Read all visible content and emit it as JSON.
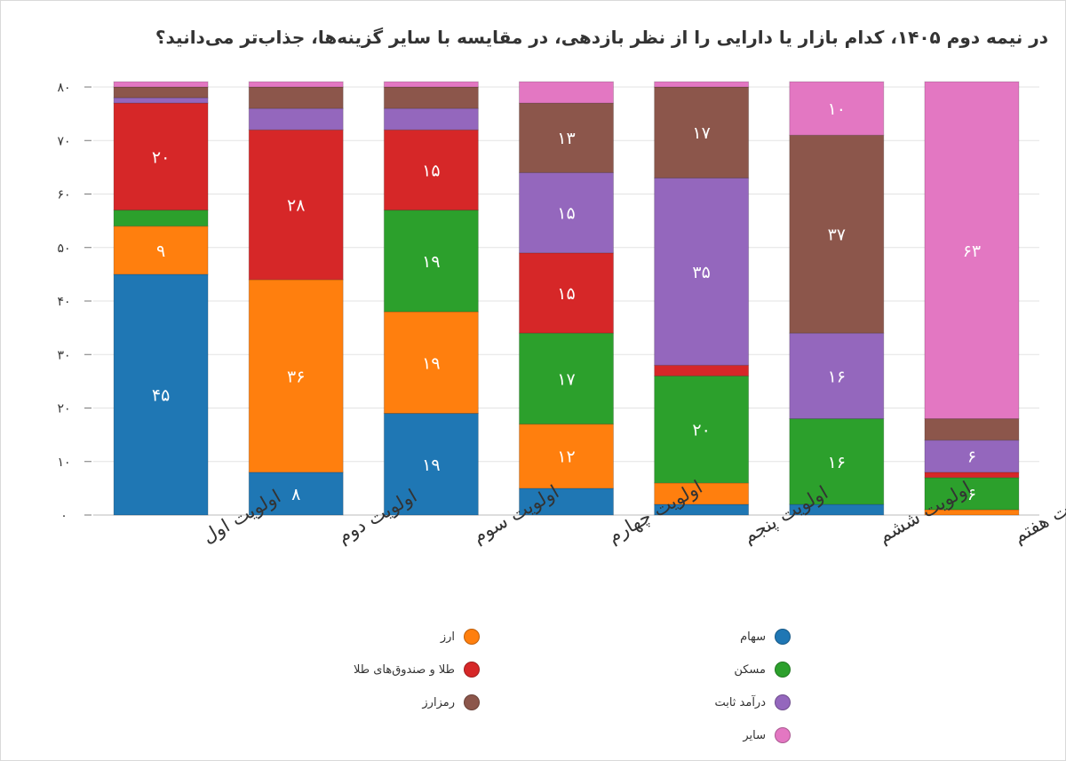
{
  "title": "در نیمه دوم ۱۴۰۵، کدام بازار یا دارایی را از نظر بازدهی، در مقایسه با سایر گزینه‌ها، جذاب‌تر می‌دانید؟",
  "chart_data": {
    "type": "bar",
    "stacked": true,
    "title": "در نیمه دوم ۱۴۰۵، کدام بازار یا دارایی را از نظر بازدهی، در مقایسه با سایر گزینه‌ها، جذاب‌تر می‌دانید؟",
    "categories": [
      "اولویت اول",
      "اولویت دوم",
      "اولویت سوم",
      "اولویت چهارم",
      "اولویت پنجم",
      "اولویت ششم",
      "اولویت هفتم"
    ],
    "ylim": [
      0,
      80
    ],
    "yticks": [
      "۰",
      "۱۰",
      "۲۰",
      "۳۰",
      "۴۰",
      "۵۰",
      "۶۰",
      "۷۰",
      "۸۰"
    ],
    "grid": true,
    "legend_position": "bottom",
    "series": [
      {
        "name": "سهام",
        "color": "#1f77b4",
        "values": [
          45,
          8,
          19,
          5,
          2,
          2,
          0
        ],
        "labels": [
          "۴۵",
          "۸",
          "۱۹",
          "",
          "",
          "",
          ""
        ]
      },
      {
        "name": "ارز",
        "color": "#ff7f0e",
        "values": [
          9,
          36,
          19,
          12,
          4,
          0,
          1
        ],
        "labels": [
          "۹",
          "۳۶",
          "۱۹",
          "۱۲",
          "",
          "",
          ""
        ]
      },
      {
        "name": "مسکن",
        "color": "#2ca02c",
        "values": [
          3,
          0,
          19,
          17,
          20,
          16,
          6
        ],
        "labels": [
          "",
          "",
          "۱۹",
          "۱۷",
          "۲۰",
          "۱۶",
          "۶"
        ]
      },
      {
        "name": "طلا و صندوق‌های طلا",
        "color": "#d62728",
        "values": [
          20,
          28,
          15,
          15,
          2,
          0,
          1
        ],
        "labels": [
          "۲۰",
          "۲۸",
          "۱۵",
          "۱۵",
          "",
          "",
          ""
        ]
      },
      {
        "name": "درآمد ثابت",
        "color": "#9467bd",
        "values": [
          1,
          4,
          4,
          15,
          35,
          16,
          6
        ],
        "labels": [
          "",
          "",
          "",
          "۱۵",
          "۳۵",
          "۱۶",
          "۶"
        ]
      },
      {
        "name": "رمزارز",
        "color": "#8c564b",
        "values": [
          2,
          4,
          4,
          13,
          17,
          37,
          4
        ],
        "labels": [
          "",
          "",
          "",
          "۱۳",
          "۱۷",
          "۳۷",
          ""
        ]
      },
      {
        "name": "سایر",
        "color": "#e377c2",
        "values": [
          1,
          1,
          1,
          4,
          1,
          10,
          63
        ],
        "labels": [
          "",
          "",
          "",
          "",
          "",
          "۱۰",
          "۶۳"
        ]
      }
    ],
    "legend": [
      {
        "name": "سهام",
        "color": "#1f77b4"
      },
      {
        "name": "ارز",
        "color": "#ff7f0e"
      },
      {
        "name": "مسکن",
        "color": "#2ca02c"
      },
      {
        "name": "طلا و صندوق‌های طلا",
        "color": "#d62728"
      },
      {
        "name": "درآمد ثابت",
        "color": "#9467bd"
      },
      {
        "name": "رمزارز",
        "color": "#8c564b"
      },
      {
        "name": "سایر",
        "color": "#e377c2"
      }
    ]
  }
}
